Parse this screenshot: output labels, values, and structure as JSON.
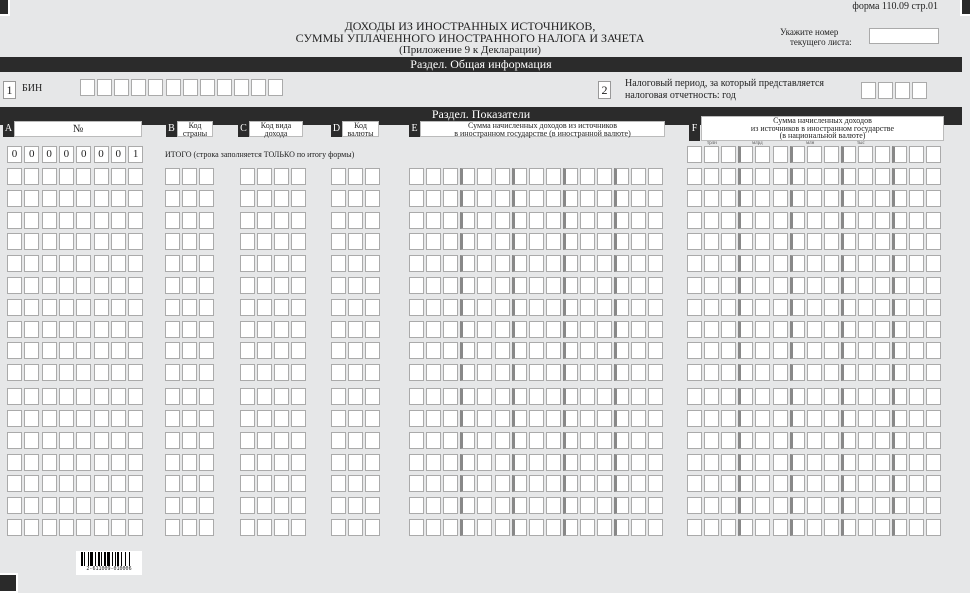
{
  "form_id": "форма 110.09 стр.01",
  "title": {
    "line1": "ДОХОДЫ ИЗ ИНОСТРАННЫХ ИСТОЧНИКОВ,",
    "line2": "СУММЫ УПЛАЧЕННОГО ИНОСТРАННОГО НАЛОГА И ЗАЧЕТА",
    "line3": "(Приложение 9 к Декларации)"
  },
  "sheet_number": {
    "label_line1": "Укажите номер",
    "label_line2": "текущего листа:",
    "value": ""
  },
  "section_general": {
    "title": "Раздел. Общая информация",
    "field1": {
      "num": "1",
      "label": "БИН"
    },
    "field2": {
      "num": "2",
      "label_line1": "Налоговый период, за который представляется",
      "label_line2": "налоговая отчетность: год"
    }
  },
  "section_indicators": {
    "title": "Раздел. Показатели",
    "columns": {
      "A": {
        "letter": "A",
        "label": "№"
      },
      "B": {
        "letter": "B",
        "label_line1": "Код",
        "label_line2": "страны"
      },
      "C": {
        "letter": "C",
        "label_line1": "Код вида",
        "label_line2": "дохода"
      },
      "D": {
        "letter": "D",
        "label_line1": "Код",
        "label_line2": "валюты"
      },
      "E": {
        "letter": "E",
        "label_line1": "Сумма начисленных доходов из источников",
        "label_line2": "в иностранном государстве (в иностранной валюте)"
      },
      "F": {
        "letter": "F",
        "label_line1": "Сумма начисленных доходов",
        "label_line2": "из источников в иностранном государстве",
        "label_line3": "(в национальной валюте)"
      }
    },
    "units": [
      "трлн",
      "млрд",
      "млн",
      "тыс"
    ],
    "total_row": {
      "number": [
        "0",
        "0",
        "0",
        "0",
        "0",
        "0",
        "0",
        "1"
      ],
      "label": "ИТОГО (строка заполняется ТОЛЬКО по итогу формы)"
    }
  },
  "barcode": "2-611009-010006",
  "colors": {
    "background": "#e6e7e8",
    "bar": "#2b2b2b",
    "cell_border": "#aaaaaa"
  }
}
